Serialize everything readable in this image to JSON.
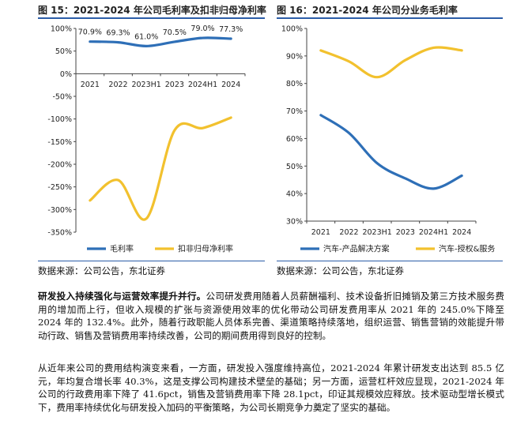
{
  "figure1": {
    "title": "图 15：2021-2024 年公司毛利率及扣非归母净利率",
    "source": "数据来源：公司公告，东北证券"
  },
  "figure2": {
    "title": "图 16：2021-2024 年公司分业务毛利率",
    "source": "数据来源：公司公告，东北证券"
  },
  "paragraph1": {
    "lead": "研发投入持续强化与运营效率提升并行。",
    "text": "公司研发费用随着人员薪酬福利、技术设备折旧摊销及第三方技术服务费用的增加而上行，但收入规模的扩张与资源使用效率的优化带动公司研发费用率从 2021 年的 245.0%下降至 2024 年的 132.4%。此外，随着行政职能人员体系完善、渠道策略持续落地，组织运营、销售营销的效能提升带动行政、销售及营销费用率持续改善，公司的期间费用得到良好的控制。"
  },
  "paragraph2": {
    "text": "从近年来公司的费用结构演变来看，一方面，研发投入强度维持高位，2021-2024 年累计研发支出达到 85.5 亿元，年均复合增长率 40.3%，这是支撑公司构建技术壁垒的基础；另一方面，运营杠杆效应显现，2021-2024 年公司的行政费用率下降了 41.6pct，销售及营销费用率下降 28.1pct，印证其规模效应释放。技术驱动型增长模式下，费用率持续优化与研发投入加码的平衡策略，为公司长期竞争力奠定了坚实的基础。"
  },
  "chart_data": [
    {
      "type": "line",
      "categories": [
        "2021",
        "2022",
        "2023H1",
        "2023",
        "2024H1",
        "2024"
      ],
      "series": [
        {
          "name": "毛利率",
          "color": "#2e6fb7",
          "values": [
            70.9,
            69.3,
            61.0,
            70.5,
            79.0,
            77.3
          ]
        },
        {
          "name": "扣非归母净利率",
          "color": "#f2c12e",
          "values": [
            -280,
            -235,
            -320,
            -125,
            -120,
            -97
          ]
        }
      ],
      "data_labels": [
        "70.9%",
        "69.3%",
        "61.0%",
        "70.5%",
        "79.0%",
        "77.3%"
      ],
      "yticks": [
        "100%",
        "50%",
        "0%",
        "-50%",
        "-100%",
        "-150%",
        "-200%",
        "-250%",
        "-300%",
        "-350%"
      ],
      "ylim": [
        -350,
        100
      ],
      "legend": "bottom",
      "grid": false
    },
    {
      "type": "line",
      "categories": [
        "2021",
        "2022",
        "2023H1",
        "2023",
        "2024H1",
        "2024"
      ],
      "series": [
        {
          "name": "汽车-产品解决方案",
          "color": "#2e6fb7",
          "values": [
            68.5,
            62.0,
            51.0,
            45.5,
            41.8,
            46.5
          ]
        },
        {
          "name": "汽车-授权&服务",
          "color": "#f2c12e",
          "values": [
            92.0,
            88.0,
            82.3,
            88.5,
            93.0,
            92.0
          ]
        }
      ],
      "yticks": [
        "100%",
        "90%",
        "80%",
        "70%",
        "60%",
        "50%",
        "40%",
        "30%"
      ],
      "ylim": [
        30,
        100
      ],
      "legend": "bottom",
      "grid": false
    }
  ]
}
